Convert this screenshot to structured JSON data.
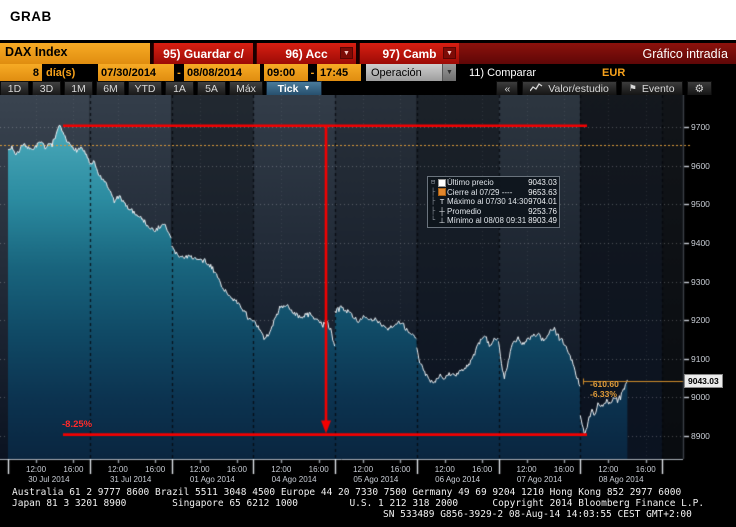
{
  "header": {
    "title": "GRAB"
  },
  "toolbar": {
    "security": "DAX Index",
    "buttons": [
      {
        "label": "95) Guardar c/"
      },
      {
        "label": "96) Acc"
      },
      {
        "label": "97) Camb"
      }
    ],
    "dropdown_glyph": "▼",
    "screen_title": "Gráfico intradía"
  },
  "controls": {
    "days_value": "8",
    "days_label": "día(s)",
    "date_from": "07/30/2014",
    "date_to": "08/08/2014",
    "time_from": "09:00",
    "time_to": "17:45",
    "range_separator": "-",
    "operation_dropdown": "Operación",
    "compare_label": "11) Comparar",
    "currency": "EUR"
  },
  "tabs": {
    "items": [
      "1D",
      "3D",
      "1M",
      "6M",
      "YTD",
      "1A",
      "5A",
      "Máx"
    ],
    "active_mode": "Tick",
    "collapse_button": "«",
    "study_button": "Valor/estudio",
    "event_button": "Evento"
  },
  "legend": {
    "expander": "⊟",
    "rows": [
      {
        "icon": "last-price-marker",
        "label": "Último precio",
        "value": "9043.03"
      },
      {
        "icon": "prev-close-marker",
        "label": "Cierre al 07/29 ----",
        "value": "9653.63"
      },
      {
        "icon": "high-marker",
        "label": "Máximo al 07/30 14:30",
        "value": "9704.01"
      },
      {
        "icon": "avg-marker",
        "label": "Promedio",
        "value": "9253.76"
      },
      {
        "icon": "low-marker",
        "label": "Mínimo al 08/08 09:31",
        "value": "8903.49"
      }
    ]
  },
  "annotations": {
    "drop_pct": "-8.25%",
    "change_abs": "-610.60",
    "change_pct": "-6.33%",
    "last_price_label": "9043.03"
  },
  "chart_data": {
    "type": "area",
    "title": "DAX Index intraday tick chart",
    "ylim": [
      8838,
      9779
    ],
    "y_ticks": [
      9700,
      9600,
      9500,
      9400,
      9300,
      9200,
      9100,
      9000,
      8900
    ],
    "prev_close": 9653.63,
    "last_price": 9043.03,
    "high": {
      "value": 9704.01,
      "time": "07/30 14:30"
    },
    "low": {
      "value": 8903.49,
      "time": "08/08 09:31"
    },
    "average": 9253.76,
    "session_start": "09:00",
    "session_end": "17:45",
    "time_labels": [
      "12:00",
      "16:00"
    ],
    "time_fracs": [
      0.343,
      0.8
    ],
    "annotation_lines": {
      "high_line": 9704.01,
      "low_line": 8903.49,
      "vline_day": 3,
      "vline_frac": 0.89
    },
    "days": [
      {
        "date": "30 Jul 2014",
        "points": [
          [
            0,
            9638
          ],
          [
            0.05,
            9650
          ],
          [
            0.1,
            9626
          ],
          [
            0.16,
            9648
          ],
          [
            0.22,
            9655
          ],
          [
            0.28,
            9640
          ],
          [
            0.34,
            9652
          ],
          [
            0.4,
            9660
          ],
          [
            0.46,
            9648
          ],
          [
            0.52,
            9656
          ],
          [
            0.58,
            9670
          ],
          [
            0.62,
            9700
          ],
          [
            0.64,
            9704
          ],
          [
            0.67,
            9685
          ],
          [
            0.72,
            9662
          ],
          [
            0.78,
            9652
          ],
          [
            0.84,
            9640
          ],
          [
            0.9,
            9648
          ],
          [
            0.95,
            9632
          ],
          [
            1,
            9606
          ]
        ]
      },
      {
        "date": "31 Jul 2014",
        "points": [
          [
            0,
            9600
          ],
          [
            0.05,
            9610
          ],
          [
            0.1,
            9582
          ],
          [
            0.16,
            9562
          ],
          [
            0.22,
            9548
          ],
          [
            0.3,
            9508
          ],
          [
            0.36,
            9522
          ],
          [
            0.42,
            9502
          ],
          [
            0.48,
            9490
          ],
          [
            0.55,
            9478
          ],
          [
            0.62,
            9468
          ],
          [
            0.7,
            9448
          ],
          [
            0.78,
            9432
          ],
          [
            0.85,
            9440
          ],
          [
            0.92,
            9448
          ],
          [
            1,
            9408
          ]
        ]
      },
      {
        "date": "01 Ago 2014",
        "points": [
          [
            0,
            9392
          ],
          [
            0.06,
            9372
          ],
          [
            0.14,
            9362
          ],
          [
            0.22,
            9368
          ],
          [
            0.3,
            9358
          ],
          [
            0.4,
            9352
          ],
          [
            0.48,
            9340
          ],
          [
            0.55,
            9318
          ],
          [
            0.6,
            9295
          ],
          [
            0.66,
            9275
          ],
          [
            0.72,
            9262
          ],
          [
            0.78,
            9250
          ],
          [
            0.84,
            9236
          ],
          [
            0.9,
            9222
          ],
          [
            0.95,
            9205
          ],
          [
            1,
            9192
          ]
        ]
      },
      {
        "date": "04 Ago 2014",
        "points": [
          [
            0,
            9198
          ],
          [
            0.07,
            9178
          ],
          [
            0.14,
            9150
          ],
          [
            0.2,
            9168
          ],
          [
            0.26,
            9200
          ],
          [
            0.33,
            9232
          ],
          [
            0.4,
            9240
          ],
          [
            0.47,
            9225
          ],
          [
            0.54,
            9212
          ],
          [
            0.6,
            9205
          ],
          [
            0.66,
            9218
          ],
          [
            0.72,
            9212
          ],
          [
            0.78,
            9198
          ],
          [
            0.84,
            9190
          ],
          [
            0.9,
            9196
          ],
          [
            0.95,
            9168
          ],
          [
            1,
            9135
          ]
        ]
      },
      {
        "date": "05 Ago 2014",
        "points": [
          [
            0,
            9220
          ],
          [
            0.06,
            9235
          ],
          [
            0.12,
            9228
          ],
          [
            0.2,
            9215
          ],
          [
            0.28,
            9198
          ],
          [
            0.35,
            9208
          ],
          [
            0.42,
            9198
          ],
          [
            0.5,
            9202
          ],
          [
            0.58,
            9188
          ],
          [
            0.65,
            9178
          ],
          [
            0.72,
            9188
          ],
          [
            0.8,
            9196
          ],
          [
            0.87,
            9175
          ],
          [
            0.93,
            9162
          ],
          [
            1,
            9152
          ]
        ]
      },
      {
        "date": "06 Ago 2014",
        "points": [
          [
            0,
            9128
          ],
          [
            0.04,
            9090
          ],
          [
            0.1,
            9062
          ],
          [
            0.16,
            9045
          ],
          [
            0.22,
            9040
          ],
          [
            0.28,
            9058
          ],
          [
            0.34,
            9046
          ],
          [
            0.4,
            9062
          ],
          [
            0.47,
            9056
          ],
          [
            0.54,
            9068
          ],
          [
            0.6,
            9078
          ],
          [
            0.66,
            9092
          ],
          [
            0.72,
            9120
          ],
          [
            0.78,
            9148
          ],
          [
            0.84,
            9158
          ],
          [
            0.89,
            9132
          ],
          [
            0.94,
            9148
          ],
          [
            1,
            9158
          ]
        ]
      },
      {
        "date": "07 Ago 2014",
        "points": [
          [
            0,
            9150
          ],
          [
            0.03,
            9098
          ],
          [
            0.07,
            9048
          ],
          [
            0.12,
            9095
          ],
          [
            0.17,
            9138
          ],
          [
            0.23,
            9150
          ],
          [
            0.3,
            9138
          ],
          [
            0.37,
            9152
          ],
          [
            0.44,
            9160
          ],
          [
            0.5,
            9165
          ],
          [
            0.56,
            9148
          ],
          [
            0.62,
            9170
          ],
          [
            0.68,
            9178
          ],
          [
            0.74,
            9158
          ],
          [
            0.8,
            9142
          ],
          [
            0.85,
            9120
          ],
          [
            0.9,
            9095
          ],
          [
            0.95,
            9058
          ],
          [
            1,
            9028
          ]
        ]
      },
      {
        "date": "08 Ago 2014",
        "points": [
          [
            0,
            8952
          ],
          [
            0.03,
            8925
          ],
          [
            0.06,
            8903.49
          ],
          [
            0.1,
            8940
          ],
          [
            0.14,
            8968
          ],
          [
            0.18,
            8955
          ],
          [
            0.22,
            8985
          ],
          [
            0.27,
            8975
          ],
          [
            0.32,
            8992
          ],
          [
            0.37,
            8982
          ],
          [
            0.42,
            9000
          ],
          [
            0.46,
            8990
          ],
          [
            0.5,
            9008
          ],
          [
            0.53,
            9020
          ],
          [
            0.56,
            9035
          ],
          [
            0.583,
            9043.03
          ]
        ]
      }
    ]
  },
  "footer": {
    "line1": "Australia 61 2 9777 8600 Brazil 5511 3048 4500 Europe 44 20 7330 7500 Germany 49 69 9204 1210 Hong Kong 852 2977 6000",
    "line2": "Japan 81 3 3201 8900        Singapore 65 6212 1000         U.S. 1 212 318 2000      Copyright 2014 Bloomberg Finance L.P.",
    "line3": "SN 533489 G856-3929-2 08-Aug-14 14:03:55 CEST GMT+2:00"
  },
  "colors": {
    "amber": "#f7a21c",
    "red_button": "#d81f12",
    "dark_red_strip": "#8c120c",
    "annotation_red": "#f40000",
    "tick_tab_blue": "#3f7292",
    "price_line": "#eff2f5",
    "close_line_orange": "#dc9b3a",
    "last_price_orange": "#cf8c2a",
    "teal_top": "#4aa9ba",
    "teal_bottom": "#0a2640",
    "panel_shades": [
      "#3a4450",
      "#343e4a",
      "#222931",
      "#333d49",
      "#29313b",
      "#1c2229",
      "#2d3640",
      "#14181e"
    ],
    "panel_bottom": "#0b1321"
  }
}
